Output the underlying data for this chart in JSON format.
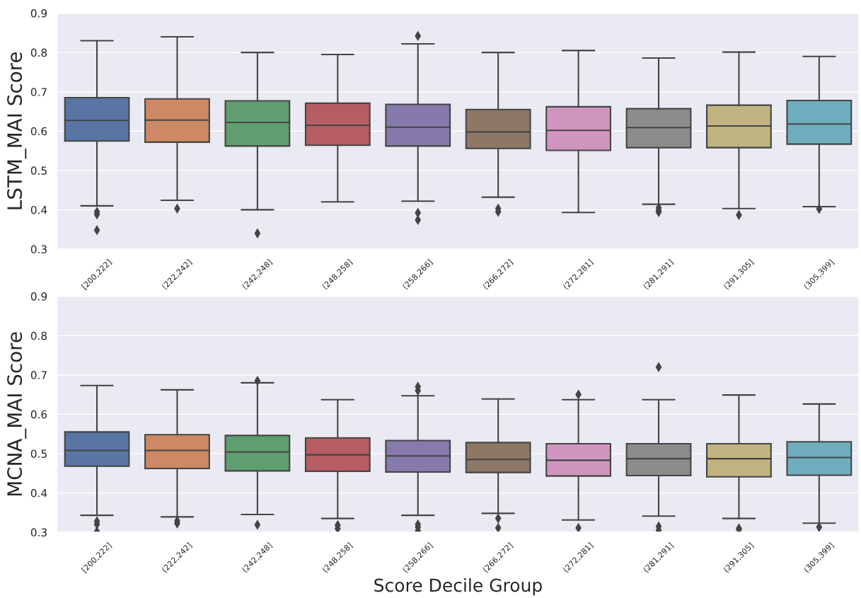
{
  "chart_data": [
    {
      "type": "box",
      "ylabel": "LSTM_MAI Score",
      "categories": [
        "[200,222]",
        "(222,242]",
        "(242,248]",
        "(248,258]",
        "(258,266]",
        "(266,272]",
        "(272,281]",
        "(281,291]",
        "(291,305]",
        "(305,399]"
      ],
      "colors": [
        "#5875a4",
        "#cc8963",
        "#5f9e6e",
        "#b55d60",
        "#857aab",
        "#8d7866",
        "#d095bf",
        "#8c8c8c",
        "#c1b37f",
        "#6fadbe"
      ],
      "boxes": [
        {
          "low": 0.41,
          "q1": 0.575,
          "median": 0.627,
          "q3": 0.685,
          "high": 0.83,
          "outliers": [
            0.395,
            0.388,
            0.348
          ]
        },
        {
          "low": 0.424,
          "q1": 0.572,
          "median": 0.628,
          "q3": 0.682,
          "high": 0.84,
          "outliers": [
            0.403
          ]
        },
        {
          "low": 0.4,
          "q1": 0.562,
          "median": 0.622,
          "q3": 0.677,
          "high": 0.8,
          "outliers": [
            0.34
          ]
        },
        {
          "low": 0.42,
          "q1": 0.564,
          "median": 0.615,
          "q3": 0.671,
          "high": 0.795
        },
        {
          "low": 0.422,
          "q1": 0.562,
          "median": 0.61,
          "q3": 0.668,
          "high": 0.822,
          "outliers": [
            0.842,
            0.392,
            0.374
          ]
        },
        {
          "low": 0.432,
          "q1": 0.556,
          "median": 0.598,
          "q3": 0.655,
          "high": 0.8,
          "outliers": [
            0.403,
            0.395
          ]
        },
        {
          "low": 0.393,
          "q1": 0.551,
          "median": 0.602,
          "q3": 0.662,
          "high": 0.805
        },
        {
          "low": 0.414,
          "q1": 0.558,
          "median": 0.609,
          "q3": 0.657,
          "high": 0.786,
          "outliers": [
            0.405,
            0.398,
            0.394
          ]
        },
        {
          "low": 0.403,
          "q1": 0.558,
          "median": 0.613,
          "q3": 0.666,
          "high": 0.801,
          "outliers": [
            0.387
          ]
        },
        {
          "low": 0.408,
          "q1": 0.567,
          "median": 0.618,
          "q3": 0.678,
          "high": 0.79,
          "outliers": [
            0.402
          ]
        }
      ],
      "ylim": [
        0.3,
        0.9
      ],
      "yticks": [
        0.3,
        0.4,
        0.5,
        0.6,
        0.7,
        0.8,
        0.9
      ],
      "grid": "y",
      "marker": "diamond"
    },
    {
      "type": "box",
      "xlabel": "Score Decile Group",
      "ylabel": "MCNA_MAI Score",
      "categories": [
        "[200,222]",
        "(222,242]",
        "(242,248]",
        "(248,258]",
        "(258,266]",
        "(266,272]",
        "(272,281]",
        "(281,291]",
        "(291,305]",
        "(305,399]"
      ],
      "colors": [
        "#5875a4",
        "#cc8963",
        "#5f9e6e",
        "#b55d60",
        "#857aab",
        "#8d7866",
        "#d095bf",
        "#8c8c8c",
        "#c1b37f",
        "#6fadbe"
      ],
      "boxes": [
        {
          "low": 0.343,
          "q1": 0.468,
          "median": 0.508,
          "q3": 0.555,
          "high": 0.673,
          "outliers": [
            0.328,
            0.32,
            0.302
          ]
        },
        {
          "low": 0.339,
          "q1": 0.462,
          "median": 0.508,
          "q3": 0.548,
          "high": 0.662,
          "outliers": [
            0.329,
            0.322
          ]
        },
        {
          "low": 0.345,
          "q1": 0.456,
          "median": 0.504,
          "q3": 0.546,
          "high": 0.68,
          "outliers": [
            0.685,
            0.319
          ]
        },
        {
          "low": 0.335,
          "q1": 0.455,
          "median": 0.497,
          "q3": 0.54,
          "high": 0.637,
          "outliers": [
            0.318,
            0.309
          ]
        },
        {
          "low": 0.343,
          "q1": 0.453,
          "median": 0.494,
          "q3": 0.533,
          "high": 0.647,
          "outliers": [
            0.67,
            0.66,
            0.32,
            0.313,
            0.304
          ]
        },
        {
          "low": 0.348,
          "q1": 0.452,
          "median": 0.485,
          "q3": 0.528,
          "high": 0.639,
          "outliers": [
            0.335,
            0.311
          ]
        },
        {
          "low": 0.331,
          "q1": 0.443,
          "median": 0.483,
          "q3": 0.525,
          "high": 0.637,
          "outliers": [
            0.65,
            0.311
          ]
        },
        {
          "low": 0.341,
          "q1": 0.444,
          "median": 0.487,
          "q3": 0.525,
          "high": 0.637,
          "outliers": [
            0.72,
            0.315,
            0.305
          ]
        },
        {
          "low": 0.335,
          "q1": 0.441,
          "median": 0.487,
          "q3": 0.525,
          "high": 0.649,
          "outliers": [
            0.31,
            0.307
          ]
        },
        {
          "low": 0.323,
          "q1": 0.445,
          "median": 0.49,
          "q3": 0.53,
          "high": 0.626,
          "outliers": [
            0.313
          ]
        }
      ],
      "ylim": [
        0.3,
        0.9
      ],
      "yticks": [
        0.3,
        0.4,
        0.5,
        0.6,
        0.7,
        0.8,
        0.9
      ],
      "grid": "y",
      "marker": "diamond"
    }
  ]
}
